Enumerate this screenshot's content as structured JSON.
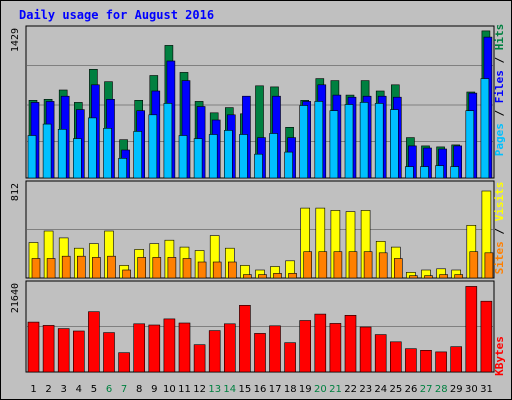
{
  "title": "Daily usage for August 2016",
  "colors": {
    "hits": "#008040",
    "files": "#0000ff",
    "pages": "#00c0ff",
    "visits": "#ffff00",
    "sites": "#ff8000",
    "kbytes": "#ff0000",
    "weekday_label": "#000000",
    "weekend_label": "#008040"
  },
  "chart_data": [
    {
      "type": "bar",
      "panel": "top",
      "ymax_label": "1429",
      "ylim": [
        0,
        1429
      ],
      "categories": [
        "1",
        "2",
        "3",
        "4",
        "5",
        "6",
        "7",
        "8",
        "9",
        "10",
        "11",
        "12",
        "13",
        "14",
        "15",
        "16",
        "17",
        "18",
        "19",
        "20",
        "21",
        "22",
        "23",
        "24",
        "25",
        "26",
        "27",
        "28",
        "29",
        "30",
        "31"
      ],
      "weekend_days": [
        "6",
        "7",
        "13",
        "14",
        "20",
        "21",
        "27",
        "28"
      ],
      "series": [
        {
          "name": "Hits",
          "legend_label": "Hits",
          "color_key": "hits",
          "values": [
            750,
            760,
            850,
            730,
            1050,
            930,
            370,
            750,
            990,
            1280,
            1020,
            740,
            630,
            680,
            620,
            890,
            880,
            490,
            750,
            960,
            940,
            800,
            940,
            840,
            900,
            390,
            310,
            300,
            320,
            830,
            1420
          ]
        },
        {
          "name": "Files",
          "legend_label": "Files",
          "color_key": "files",
          "values": [
            730,
            740,
            790,
            660,
            900,
            760,
            270,
            650,
            840,
            1130,
            940,
            690,
            560,
            610,
            790,
            390,
            790,
            390,
            740,
            900,
            800,
            780,
            790,
            790,
            780,
            310,
            290,
            280,
            310,
            820,
            1360
          ]
        },
        {
          "name": "Pages",
          "legend_label": "Pages",
          "color_key": "pages",
          "values": [
            410,
            520,
            470,
            380,
            580,
            480,
            190,
            450,
            610,
            720,
            410,
            380,
            420,
            460,
            420,
            230,
            430,
            250,
            700,
            740,
            650,
            710,
            730,
            720,
            660,
            110,
            110,
            120,
            110,
            650,
            960
          ]
        }
      ]
    },
    {
      "type": "bar",
      "panel": "middle",
      "ymax_label": "812",
      "ylim": [
        0,
        812
      ],
      "categories": [
        "1",
        "2",
        "3",
        "4",
        "5",
        "6",
        "7",
        "8",
        "9",
        "10",
        "11",
        "12",
        "13",
        "14",
        "15",
        "16",
        "17",
        "18",
        "19",
        "20",
        "21",
        "22",
        "23",
        "24",
        "25",
        "26",
        "27",
        "28",
        "29",
        "30",
        "31"
      ],
      "series": [
        {
          "name": "Visits",
          "legend_label": "Visits",
          "color_key": "visits",
          "values": [
            310,
            410,
            350,
            260,
            300,
            410,
            110,
            250,
            300,
            330,
            270,
            240,
            370,
            260,
            110,
            70,
            100,
            150,
            610,
            610,
            590,
            580,
            590,
            320,
            270,
            50,
            70,
            80,
            70,
            460,
            760
          ]
        },
        {
          "name": "Sites",
          "legend_label": "Sites",
          "color_key": "sites",
          "values": [
            170,
            170,
            190,
            190,
            180,
            190,
            70,
            180,
            180,
            180,
            170,
            140,
            140,
            140,
            30,
            30,
            40,
            40,
            230,
            230,
            230,
            230,
            230,
            220,
            170,
            20,
            20,
            30,
            30,
            230,
            220
          ]
        }
      ]
    },
    {
      "type": "bar",
      "panel": "bottom",
      "ymax_label": "21640",
      "ylim": [
        0,
        21640
      ],
      "categories": [
        "1",
        "2",
        "3",
        "4",
        "5",
        "6",
        "7",
        "8",
        "9",
        "10",
        "11",
        "12",
        "13",
        "14",
        "15",
        "16",
        "17",
        "18",
        "19",
        "20",
        "21",
        "22",
        "23",
        "24",
        "25",
        "26",
        "27",
        "28",
        "29",
        "30",
        "31"
      ],
      "series": [
        {
          "name": "KBytes",
          "legend_label": "KBytes",
          "color_key": "kbytes",
          "values": [
            12400,
            11600,
            10800,
            10200,
            15000,
            9800,
            4800,
            12000,
            11700,
            13200,
            12200,
            6800,
            10300,
            12000,
            16600,
            9600,
            11500,
            7300,
            12800,
            14400,
            12100,
            14100,
            11200,
            9300,
            7500,
            5800,
            5400,
            5000,
            6300,
            21300,
            17600
          ]
        }
      ]
    }
  ]
}
